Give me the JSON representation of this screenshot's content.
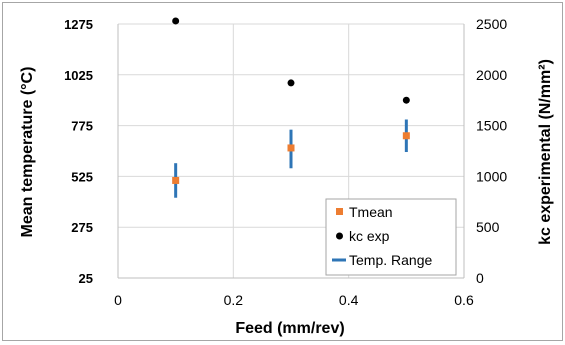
{
  "chart_data": {
    "type": "scatter",
    "x_axis": {
      "label": "Feed (mm/rev)",
      "range": [
        0,
        0.6
      ],
      "ticks": [
        "0",
        "0.2",
        "0.4",
        "0.6"
      ],
      "tick_values": [
        0,
        0.2,
        0.4,
        0.6
      ]
    },
    "y_left_axis": {
      "label": "Mean temperature (°C)",
      "range": [
        25,
        1275
      ],
      "ticks": [
        "1275",
        "1025",
        "775",
        "525",
        "275",
        "25"
      ],
      "tick_values": [
        1275,
        1025,
        775,
        525,
        275,
        25
      ]
    },
    "y_right_axis": {
      "label": "kc experimental (N/mm²)",
      "range": [
        0,
        2500
      ],
      "ticks": [
        "2500",
        "2000",
        "1500",
        "1000",
        "500",
        "0"
      ],
      "tick_values": [
        2500,
        2000,
        1500,
        1000,
        500,
        0
      ]
    },
    "grid": true,
    "legend_position": "bottom-right",
    "series": [
      {
        "name": "Tmean",
        "axis": "left",
        "marker": "square",
        "color": "#ED7D31",
        "x": [
          0.1,
          0.3,
          0.5
        ],
        "y": [
          505,
          665,
          725
        ]
      },
      {
        "name": "kc exp",
        "axis": "right",
        "marker": "circle",
        "color": "#000000",
        "x": [
          0.1,
          0.3,
          0.5
        ],
        "y": [
          2530,
          1920,
          1750
        ]
      },
      {
        "name": "Temp. Range",
        "axis": "left",
        "marker": "vertical-line",
        "color": "#2E75B6",
        "x": [
          0.1,
          0.3,
          0.5
        ],
        "y_low": [
          420,
          565,
          645
        ],
        "y_high": [
          590,
          755,
          805
        ]
      }
    ]
  }
}
